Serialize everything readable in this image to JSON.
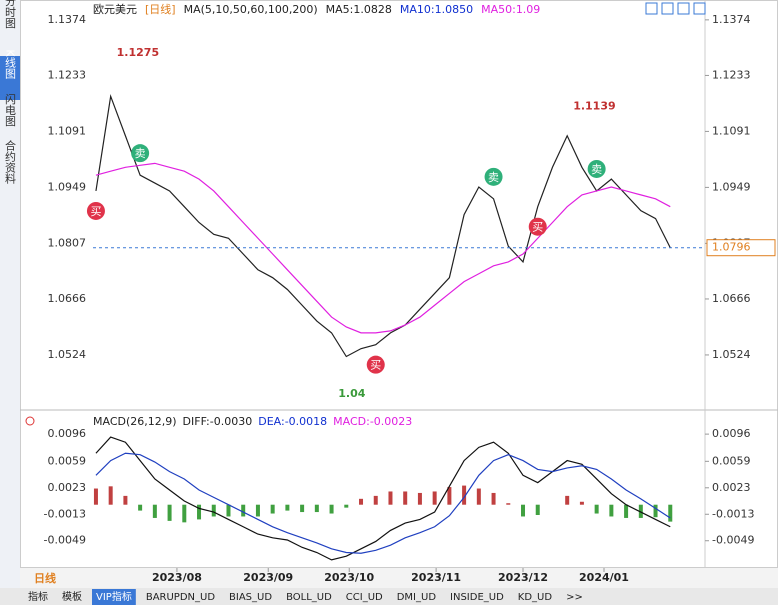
{
  "sidebar": [
    "分时图",
    "K线图",
    "闪电图",
    "合约资料"
  ],
  "header": {
    "symbol": "欧元美元",
    "period": "[日线]",
    "ma": "MA(5,10,50,60,100,200)",
    "ma5": "MA5:1.0828",
    "ma10": "MA10:1.0850",
    "ma50": "MA50:1.09"
  },
  "macd_header": {
    "name": "MACD(26,12,9)",
    "diff": "DIFF:-0.0030",
    "dea": "DEA:-0.0018",
    "macd": "MACD:-0.0023"
  },
  "footer": {
    "period": "日线",
    "tabs": [
      "指标",
      "模板",
      "VIP指标",
      "BARUPDN_UD",
      "BIAS_UD",
      "BOLL_UD",
      "CCI_UD",
      "DMI_UD",
      "INSIDE_UD",
      "KD_UD",
      ">>"
    ]
  },
  "chart_data": [
    {
      "type": "line",
      "x": [
        0,
        1,
        2,
        3,
        4,
        5,
        6,
        7,
        8,
        9,
        10,
        11,
        12,
        13,
        14,
        15,
        16,
        17,
        18,
        19,
        20,
        21,
        22,
        23,
        24,
        25,
        26,
        27,
        28,
        29,
        30,
        31,
        32,
        33,
        34,
        35,
        36,
        37,
        38,
        39
      ],
      "xlim": [
        -0.2,
        40
      ],
      "xticks": [
        {
          "value": 5.5,
          "label": "2023/08"
        },
        {
          "value": 11.7,
          "label": "2023/09"
        },
        {
          "value": 17.2,
          "label": "2023/10"
        },
        {
          "value": 23.1,
          "label": "2023/11"
        },
        {
          "value": 29,
          "label": "2023/12"
        },
        {
          "value": 34.5,
          "label": "2024/01"
        }
      ],
      "ylim": [
        1.0397,
        1.1399
      ],
      "yticks": [
        1.0524,
        1.0666,
        1.0807,
        1.0949,
        1.1091,
        1.1233,
        1.1374
      ],
      "series": [
        {
          "color": "#222222",
          "values": [
            1.094,
            1.118,
            1.108,
            1.098,
            1.096,
            1.094,
            1.09,
            1.086,
            1.083,
            1.082,
            1.078,
            1.074,
            1.072,
            1.069,
            1.065,
            1.061,
            1.058,
            1.052,
            1.054,
            1.055,
            1.058,
            1.06,
            1.064,
            1.068,
            1.072,
            1.088,
            1.095,
            1.092,
            1.08,
            1.076,
            1.09,
            1.1,
            1.108,
            1.1,
            1.094,
            1.097,
            1.093,
            1.089,
            1.087,
            1.0796
          ]
        },
        {
          "color": "#e020e0",
          "values": [
            1.098,
            1.099,
            1.1,
            1.1005,
            1.101,
            1.1,
            1.099,
            1.097,
            1.094,
            1.09,
            1.086,
            1.082,
            1.078,
            1.074,
            1.07,
            1.066,
            1.062,
            1.0595,
            1.058,
            1.058,
            1.0585,
            1.06,
            1.062,
            1.065,
            1.068,
            1.071,
            1.073,
            1.075,
            1.076,
            1.078,
            1.082,
            1.086,
            1.09,
            1.093,
            1.094,
            1.095,
            1.094,
            1.093,
            1.092,
            1.09
          ]
        }
      ],
      "last": {
        "value": 1.0796,
        "label": "1.0796"
      },
      "highs": [
        {
          "x": 1,
          "value": 1.1275
        },
        {
          "x": 32,
          "value": 1.1139
        }
      ],
      "low_label": {
        "x": 17,
        "text": "1.04"
      },
      "signals": [
        {
          "x": 0,
          "text": "买"
        },
        {
          "x": 3,
          "text": "卖"
        },
        {
          "x": 19,
          "text": "买"
        },
        {
          "x": 27,
          "text": "卖"
        },
        {
          "x": 30,
          "text": "买"
        },
        {
          "x": 34,
          "text": "卖"
        }
      ]
    },
    {
      "type": "macd",
      "ylim": [
        -0.0082,
        0.0122
      ],
      "yticks": [
        -0.0049,
        -0.0013,
        0.0023,
        0.0059,
        0.0096
      ],
      "histogram": [
        0.0022,
        0.0025,
        0.0012,
        -0.0008,
        -0.0018,
        -0.0022,
        -0.0024,
        -0.002,
        -0.0016,
        -0.0016,
        -0.0016,
        -0.0016,
        -0.0012,
        -0.0008,
        -0.001,
        -0.001,
        -0.0012,
        -0.0004,
        0.0008,
        0.0012,
        0.0018,
        0.0018,
        0.0016,
        0.0018,
        0.0024,
        0.0026,
        0.0022,
        0.0016,
        0.0002,
        -0.0016,
        -0.0014,
        0.0,
        0.0012,
        0.0004,
        -0.0012,
        -0.0016,
        -0.0018,
        -0.0018,
        -0.0017,
        -0.0023
      ],
      "series": [
        {
          "color": "#111111",
          "values": [
            0.007,
            0.0092,
            0.0085,
            0.006,
            0.0035,
            0.002,
            0.0005,
            -0.0005,
            -0.001,
            -0.002,
            -0.003,
            -0.004,
            -0.0045,
            -0.0048,
            -0.0058,
            -0.0065,
            -0.0075,
            -0.007,
            -0.006,
            -0.005,
            -0.0035,
            -0.0025,
            -0.002,
            -0.001,
            0.0025,
            0.006,
            0.0078,
            0.0085,
            0.007,
            0.004,
            0.003,
            0.0045,
            0.006,
            0.0055,
            0.0035,
            0.0015,
            0.0,
            -0.001,
            -0.002,
            -0.003
          ]
        },
        {
          "color": "#2040c0",
          "values": [
            0.004,
            0.006,
            0.007,
            0.0068,
            0.0058,
            0.0045,
            0.0035,
            0.002,
            0.001,
            0.0,
            -0.001,
            -0.002,
            -0.003,
            -0.0038,
            -0.0045,
            -0.0052,
            -0.006,
            -0.0065,
            -0.0066,
            -0.0062,
            -0.0055,
            -0.0045,
            -0.0038,
            -0.003,
            -0.0015,
            0.001,
            0.004,
            0.006,
            0.0068,
            0.006,
            0.0048,
            0.0045,
            0.005,
            0.0053,
            0.0048,
            0.0035,
            0.002,
            0.0008,
            -0.0005,
            -0.0018
          ]
        }
      ]
    }
  ]
}
